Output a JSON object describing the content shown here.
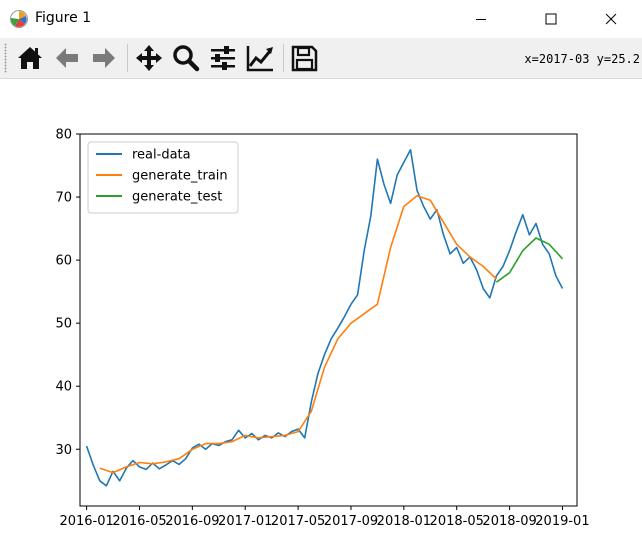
{
  "window": {
    "title": "Figure 1",
    "icon": "matplotlib-icon",
    "controls": [
      "minimize-icon",
      "maximize-icon",
      "close-icon"
    ]
  },
  "toolbar": {
    "buttons": [
      {
        "name": "home-button",
        "icon": "home-icon"
      },
      {
        "name": "back-button",
        "icon": "arrow-left-icon"
      },
      {
        "name": "forward-button",
        "icon": "arrow-right-icon"
      },
      {
        "name": "pan-button",
        "icon": "move-icon"
      },
      {
        "name": "zoom-button",
        "icon": "magnifier-icon"
      },
      {
        "name": "configure-subplots-button",
        "icon": "sliders-icon"
      },
      {
        "name": "edit-axis-button",
        "icon": "chart-line-icon"
      },
      {
        "name": "save-button",
        "icon": "floppy-icon"
      }
    ],
    "coords": "x=2017-03 y=25.2"
  },
  "chart_data": {
    "type": "line",
    "title": "",
    "xlabel": "",
    "ylabel": "",
    "x_ticks": [
      "2016-01",
      "2016-05",
      "2016-09",
      "2017-01",
      "2017-05",
      "2017-09",
      "2018-01",
      "2018-05",
      "2018-09",
      "2019-01"
    ],
    "y_ticks": [
      "30",
      "40",
      "50",
      "60",
      "70",
      "80"
    ],
    "ylim": [
      21,
      80
    ],
    "xlim": [
      "2015-12",
      "2019-02"
    ],
    "legend_position": "upper-left",
    "grid": false,
    "series": [
      {
        "name": "real-data",
        "color": "#1f77b4",
        "points": [
          [
            "2016-01",
            30.5
          ],
          [
            "2016-01",
            27.5
          ],
          [
            "2016-02",
            25.0
          ],
          [
            "2016-02",
            24.2
          ],
          [
            "2016-03",
            26.5
          ],
          [
            "2016-03",
            25.0
          ],
          [
            "2016-04",
            27.0
          ],
          [
            "2016-04",
            28.2
          ],
          [
            "2016-05",
            27.2
          ],
          [
            "2016-05",
            26.8
          ],
          [
            "2016-06",
            27.8
          ],
          [
            "2016-06",
            26.9
          ],
          [
            "2016-07",
            27.5
          ],
          [
            "2016-07",
            28.2
          ],
          [
            "2016-08",
            27.6
          ],
          [
            "2016-08",
            28.5
          ],
          [
            "2016-09",
            30.2
          ],
          [
            "2016-09",
            30.8
          ],
          [
            "2016-10",
            30.0
          ],
          [
            "2016-10",
            30.9
          ],
          [
            "2016-11",
            30.6
          ],
          [
            "2016-11",
            31.2
          ],
          [
            "2016-12",
            31.5
          ],
          [
            "2016-12",
            33.0
          ],
          [
            "2017-01",
            31.8
          ],
          [
            "2017-01",
            32.5
          ],
          [
            "2017-02",
            31.5
          ],
          [
            "2017-02",
            32.2
          ],
          [
            "2017-03",
            31.8
          ],
          [
            "2017-03",
            32.6
          ],
          [
            "2017-04",
            32.0
          ],
          [
            "2017-04",
            32.8
          ],
          [
            "2017-05",
            33.2
          ],
          [
            "2017-05",
            31.8
          ],
          [
            "2017-06",
            37.5
          ],
          [
            "2017-06",
            42.0
          ],
          [
            "2017-07",
            45.0
          ],
          [
            "2017-07",
            47.5
          ],
          [
            "2017-08",
            49.2
          ],
          [
            "2017-08",
            51.0
          ],
          [
            "2017-09",
            53.0
          ],
          [
            "2017-09",
            54.5
          ],
          [
            "2017-10",
            61.5
          ],
          [
            "2017-10",
            67.0
          ],
          [
            "2017-11",
            76.0
          ],
          [
            "2017-11",
            72.0
          ],
          [
            "2017-12",
            69.0
          ],
          [
            "2017-12",
            73.5
          ],
          [
            "2018-01",
            75.5
          ],
          [
            "2018-01",
            77.5
          ],
          [
            "2018-02",
            71.0
          ],
          [
            "2018-02",
            68.5
          ],
          [
            "2018-03",
            66.5
          ],
          [
            "2018-03",
            68.0
          ],
          [
            "2018-04",
            64.0
          ],
          [
            "2018-04",
            61.0
          ],
          [
            "2018-05",
            62.0
          ],
          [
            "2018-05",
            59.5
          ],
          [
            "2018-06",
            60.5
          ],
          [
            "2018-06",
            58.5
          ],
          [
            "2018-07",
            55.5
          ],
          [
            "2018-07",
            54.0
          ],
          [
            "2018-08",
            57.5
          ],
          [
            "2018-08",
            59.0
          ],
          [
            "2018-09",
            61.5
          ],
          [
            "2018-09",
            64.5
          ],
          [
            "2018-10",
            67.2
          ],
          [
            "2018-10",
            64.0
          ],
          [
            "2018-11",
            65.8
          ],
          [
            "2018-11",
            62.5
          ],
          [
            "2018-12",
            61.0
          ],
          [
            "2018-12",
            57.5
          ],
          [
            "2019-01",
            55.5
          ]
        ]
      },
      {
        "name": "generate_train",
        "color": "#ff7f0e",
        "points": [
          [
            "2016-02",
            27.0
          ],
          [
            "2016-03",
            26.3
          ],
          [
            "2016-04",
            27.2
          ],
          [
            "2016-05",
            27.9
          ],
          [
            "2016-06",
            27.7
          ],
          [
            "2016-07",
            28.0
          ],
          [
            "2016-08",
            28.5
          ],
          [
            "2016-09",
            30.0
          ],
          [
            "2016-10",
            30.9
          ],
          [
            "2016-11",
            30.9
          ],
          [
            "2016-12",
            31.2
          ],
          [
            "2017-01",
            32.2
          ],
          [
            "2017-02",
            31.8
          ],
          [
            "2017-03",
            32.0
          ],
          [
            "2017-04",
            32.2
          ],
          [
            "2017-05",
            32.8
          ],
          [
            "2017-06",
            36.0
          ],
          [
            "2017-07",
            43.0
          ],
          [
            "2017-08",
            47.5
          ],
          [
            "2017-09",
            50.0
          ],
          [
            "2017-10",
            51.5
          ],
          [
            "2017-11",
            53.0
          ],
          [
            "2017-12",
            62.0
          ],
          [
            "2018-01",
            68.5
          ],
          [
            "2018-02",
            70.2
          ],
          [
            "2018-03",
            69.5
          ],
          [
            "2018-04",
            66.0
          ],
          [
            "2018-05",
            62.5
          ],
          [
            "2018-06",
            60.5
          ],
          [
            "2018-07",
            59.0
          ],
          [
            "2018-08",
            57.0
          ]
        ]
      },
      {
        "name": "generate_test",
        "color": "#2ca02c",
        "points": [
          [
            "2018-08",
            56.5
          ],
          [
            "2018-09",
            58.0
          ],
          [
            "2018-10",
            61.5
          ],
          [
            "2018-11",
            63.5
          ],
          [
            "2018-12",
            62.5
          ],
          [
            "2019-01",
            60.2
          ]
        ]
      }
    ]
  }
}
